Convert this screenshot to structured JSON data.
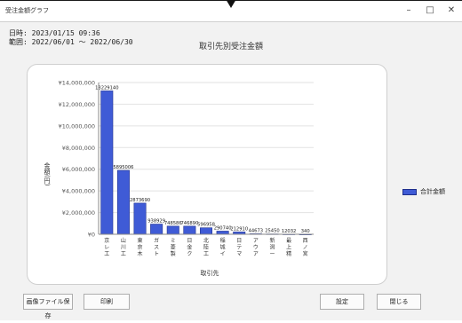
{
  "window": {
    "title": "受注金額グラフ",
    "min_symbol": "–",
    "max_symbol": "□",
    "close_symbol": "✕"
  },
  "meta": {
    "datetime": "日時: 2023/01/15 09:36",
    "period": "範囲: 2022/06/01 ～ 2022/06/30"
  },
  "chart_title": "取引先別受注金額",
  "legend": {
    "label": "合計金額",
    "color": "#3f5bd6"
  },
  "buttons": {
    "save_image": "画像ファイル保存",
    "print": "印刷",
    "settings": "設定",
    "close": "閉じる"
  },
  "chart_data": {
    "type": "bar",
    "ylabel": "金額(円)",
    "xlabel": "取引先",
    "ylim": [
      0,
      14000000
    ],
    "ytick_labels": [
      "¥0",
      "¥2,000,000",
      "¥4,000,000",
      "¥6,000,000",
      "¥8,000,000",
      "¥10,000,000",
      "¥12,000,000",
      "¥14,000,000"
    ],
    "categories": [
      "京レ工",
      "山川工",
      "東京木",
      "ガスト",
      "ミ菱製",
      "日金ク",
      "北陸工",
      "稲城イ",
      "日テマ",
      "アウア",
      "新潟ー",
      "最上精",
      "西ノ宮"
    ],
    "category_labels": [
      [
        "京",
        "レ",
        "工"
      ],
      [
        "山",
        "川",
        "工"
      ],
      [
        "東",
        "京",
        "木"
      ],
      [
        "ガ",
        "ス",
        "ト"
      ],
      [
        "ミ",
        "菱",
        "製"
      ],
      [
        "日",
        "金",
        "ク"
      ],
      [
        "北",
        "陸",
        "工"
      ],
      [
        "稲",
        "城",
        "イ"
      ],
      [
        "日",
        "テ",
        "マ"
      ],
      [
        "ア",
        "ウ",
        "ア"
      ],
      [
        "新",
        "潟",
        "ー"
      ],
      [
        "最",
        "上",
        "精"
      ],
      [
        "西",
        "ノ",
        "宮"
      ]
    ],
    "series": [
      {
        "name": "合計金額",
        "values": [
          13229140,
          5895006,
          2873690,
          938929,
          748586,
          746890,
          596958,
          290740,
          212910,
          44673,
          25450,
          12032,
          340
        ]
      }
    ],
    "grid": true,
    "legend_position": "right"
  }
}
